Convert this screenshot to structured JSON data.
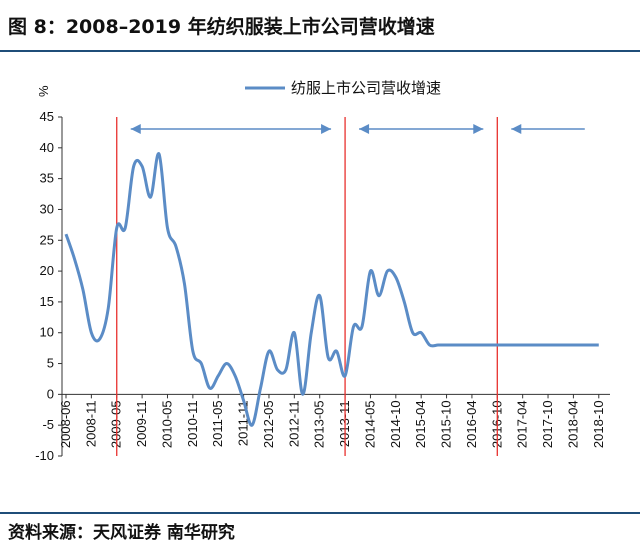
{
  "figure": {
    "title": "图 8：2008–2019 年纺织服装上市公司营收增速",
    "source": "资料来源：天风证券  南华研究"
  },
  "colors": {
    "series": "#5b8cc6",
    "divider": "#e8302d",
    "arrow": "#5b8cc6",
    "rule": "#1f4e79"
  },
  "chart_data": {
    "type": "line",
    "ylabel": "%",
    "ylim": [
      -10,
      45
    ],
    "yticks": [
      -10,
      -5,
      0,
      5,
      10,
      15,
      20,
      25,
      30,
      35,
      40,
      45
    ],
    "xticks": [
      "2008-06",
      "2008-11",
      "2009-05",
      "2009-11",
      "2010-05",
      "2010-11",
      "2011-05",
      "2011-11",
      "2012-05",
      "2012-11",
      "2013-05",
      "2013-11",
      "2014-05",
      "2014-10",
      "2015-04",
      "2015-10",
      "2016-04",
      "2016-10",
      "2017-04",
      "2017-10",
      "2018-04",
      "2018-10"
    ],
    "grid": false,
    "legend": "top-center",
    "series": [
      {
        "name": "纺服上市公司营收增速",
        "x": [
          0,
          2,
          4,
          6,
          8,
          10,
          12,
          14,
          16,
          18,
          20,
          22,
          24,
          26,
          28,
          30,
          32,
          34,
          36,
          38,
          40,
          42,
          44,
          46,
          48,
          50,
          52,
          54,
          56,
          58,
          60,
          62,
          64,
          66,
          68,
          70,
          72,
          74,
          76,
          78,
          80,
          82,
          84,
          86,
          88,
          90,
          92,
          94,
          96,
          98,
          100,
          102,
          104,
          106,
          108,
          110,
          112,
          114,
          116,
          118,
          120,
          122,
          124,
          126
        ],
        "values": [
          26,
          22,
          17,
          10,
          9,
          14,
          27,
          27,
          37,
          37,
          32,
          39,
          27,
          24,
          18,
          7,
          5,
          1,
          3,
          5,
          3,
          -1,
          -5,
          1,
          7,
          4,
          4,
          10,
          0,
          10,
          16,
          6,
          7,
          3,
          11,
          11,
          20,
          16,
          20,
          19,
          15,
          10,
          10,
          8,
          8,
          8,
          8,
          8,
          8,
          8,
          8,
          8,
          8,
          8,
          8,
          8,
          8,
          8,
          8,
          8,
          8,
          8,
          8,
          8
        ]
      }
    ],
    "dividers": [
      "2009-05",
      "2013-11",
      "2016-10"
    ],
    "periods": [
      {
        "from": "2009-05",
        "to": "2013-11",
        "arrows": "both"
      },
      {
        "from": "2013-11",
        "to": "2016-10",
        "arrows": "both"
      },
      {
        "from": "2016-10",
        "to": "2018-10",
        "arrows": "start"
      }
    ]
  }
}
